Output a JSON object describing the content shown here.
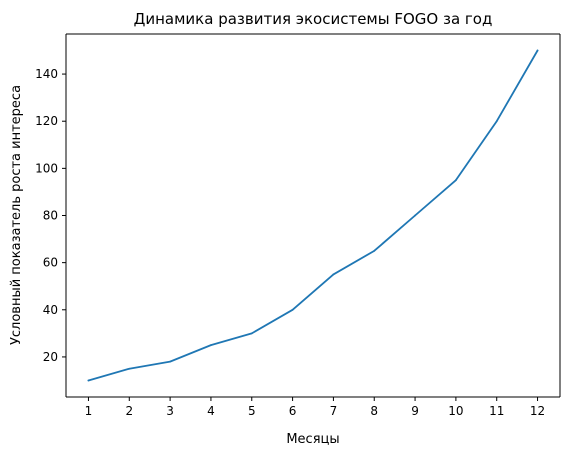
{
  "chart_data": {
    "type": "line",
    "title": "Динамика развития экосистемы FOGO за год",
    "xlabel": "Месяцы",
    "ylabel": "Условный показатель роста интереса",
    "x": [
      1,
      2,
      3,
      4,
      5,
      6,
      7,
      8,
      9,
      10,
      11,
      12
    ],
    "series": [
      {
        "values": [
          10,
          15,
          18,
          25,
          30,
          40,
          55,
          65,
          80,
          95,
          120,
          150
        ],
        "color": "#1f77b4"
      }
    ],
    "xlim": [
      0.45,
      12.55
    ],
    "ylim": [
      3,
      157
    ],
    "xticks": [
      "1",
      "2",
      "3",
      "4",
      "5",
      "6",
      "7",
      "8",
      "9",
      "10",
      "11",
      "12"
    ],
    "yticks": [
      "20",
      "40",
      "60",
      "80",
      "100",
      "120",
      "140"
    ],
    "grid": false,
    "legend": "none"
  }
}
